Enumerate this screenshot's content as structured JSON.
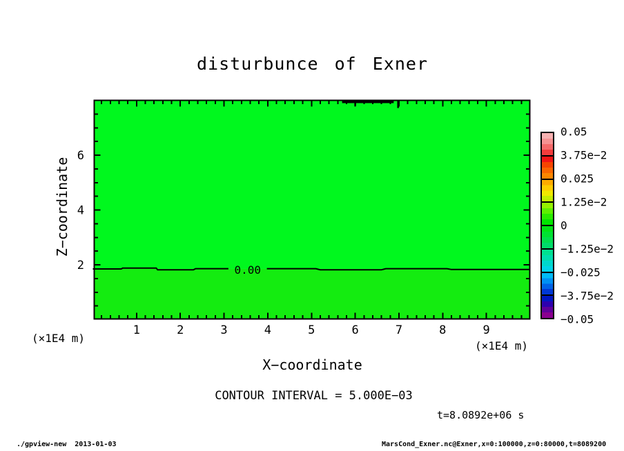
{
  "title": "disturbunce of Exner",
  "axes": {
    "x_title": "X−coordinate",
    "y_title": "Z−coordinate",
    "x_units": "(×1E4 m)",
    "y_units": "(×1E4 m)"
  },
  "annotations": {
    "contour_interval": "CONTOUR INTERVAL = 5.000E−03",
    "time": "t=8.0892e+06 s"
  },
  "footer": {
    "left": "./gpview-new  2013-01-03",
    "right": "MarsCond_Exner.nc@Exner,x=0:100000,z=0:80000,t=8089200"
  },
  "colorbar": {
    "labels": [
      "0.05",
      "3.75e−2",
      "0.025",
      "1.25e−2",
      "0",
      "−1.25e−2",
      "−0.025",
      "−3.75e−2",
      "−0.05"
    ],
    "segments": [
      [
        "#f7b1b1",
        "#f59292",
        "#f46a6a",
        "#f23c3c"
      ],
      [
        "#f21414",
        "#f64400",
        "#fa6600",
        "#fd8600"
      ],
      [
        "#feaa00",
        "#fecc00",
        "#f0e800",
        "#c4ee00"
      ],
      [
        "#94f200",
        "#5eef00",
        "#2aea00",
        "#00e600"
      ],
      [
        "#00e416",
        "#00e132",
        "#00de4e",
        "#00db6a"
      ],
      [
        "#00e090",
        "#00dcae",
        "#00d8cc",
        "#00d4e8"
      ],
      [
        "#00baf6",
        "#0090f2",
        "#0062e6",
        "#0038d6"
      ],
      [
        "#0016c2",
        "#2e00ae",
        "#60009a",
        "#8a0090"
      ]
    ]
  },
  "chart_data": {
    "type": "heatmap",
    "title": "disturbunce of Exner",
    "xlabel": "X-coordinate",
    "ylabel": "Z-coordinate",
    "x_units_scale": "1E4 m",
    "y_units_scale": "1E4 m",
    "xlim": [
      0,
      10
    ],
    "ylim": [
      0,
      8
    ],
    "x_major_ticks": [
      1,
      2,
      3,
      4,
      5,
      6,
      7,
      8,
      9
    ],
    "x_minor_step": 0.2,
    "y_major_ticks": [
      2,
      4,
      6
    ],
    "y_minor_step": 0.5,
    "contour_interval": 0.005,
    "levels": [
      0.05,
      0.0375,
      0.025,
      0.0125,
      0,
      -0.0125,
      -0.025,
      -0.0375,
      -0.05
    ],
    "time_seconds": 8089200,
    "fill_above_zero": "#00f81e",
    "fill_below_zero": "#14ec10",
    "zero_contour": {
      "z_mean": 1.85,
      "label": "0.00",
      "label_x": 3.54,
      "left_points": [
        [
          0,
          1.85
        ],
        [
          0.65,
          1.85
        ],
        [
          0.68,
          1.88
        ],
        [
          1.45,
          1.88
        ],
        [
          1.48,
          1.82
        ],
        [
          2.3,
          1.82
        ],
        [
          2.35,
          1.86
        ],
        [
          3.1,
          1.86
        ]
      ],
      "right_points": [
        [
          3.98,
          1.86
        ],
        [
          5.1,
          1.86
        ],
        [
          5.2,
          1.82
        ],
        [
          6.6,
          1.82
        ],
        [
          6.7,
          1.86
        ],
        [
          8.1,
          1.86
        ],
        [
          8.2,
          1.83
        ],
        [
          10,
          1.83
        ]
      ]
    },
    "top_contour_feature": {
      "x_start": 5.7,
      "x_end": 6.88,
      "spikes": [
        {
          "x": 6.0,
          "z_to": 7.8
        },
        {
          "x": 6.98,
          "z_to": 7.72
        }
      ]
    }
  }
}
